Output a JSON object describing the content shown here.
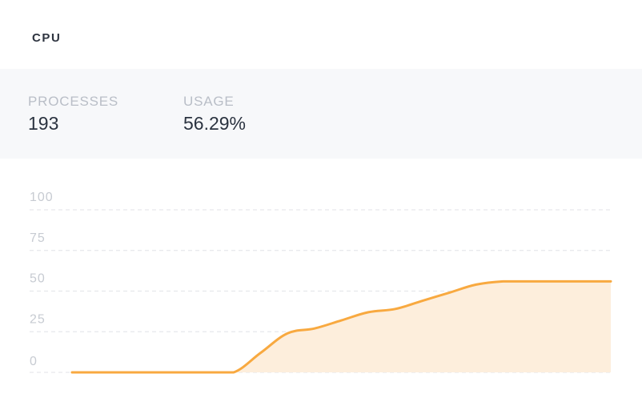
{
  "card": {
    "title": "CPU"
  },
  "stats": {
    "processes": {
      "label": "PROCESSES",
      "value": "193"
    },
    "usage": {
      "label": "USAGE",
      "value": "56.29%"
    }
  },
  "colors": {
    "line": "#f8a940",
    "area": "#fdeedc",
    "band": "#f7f8fa",
    "tick": "#c7cbd2"
  },
  "chart_data": {
    "type": "area",
    "title": "",
    "xlabel": "",
    "ylabel": "",
    "ylim": [
      0,
      100
    ],
    "yticks": [
      100,
      75,
      50,
      25,
      0
    ],
    "grid": true,
    "series": [
      {
        "x": [
          0,
          5,
          10,
          15,
          20,
          25,
          30,
          35,
          40,
          45,
          50,
          55,
          60,
          65,
          70,
          75,
          80,
          85,
          90,
          95,
          100
        ],
        "values": [
          0,
          0,
          0,
          0,
          0,
          0,
          0,
          12,
          24,
          27,
          32,
          37,
          39,
          44,
          49,
          54,
          56,
          56,
          56,
          56,
          56
        ]
      }
    ]
  }
}
